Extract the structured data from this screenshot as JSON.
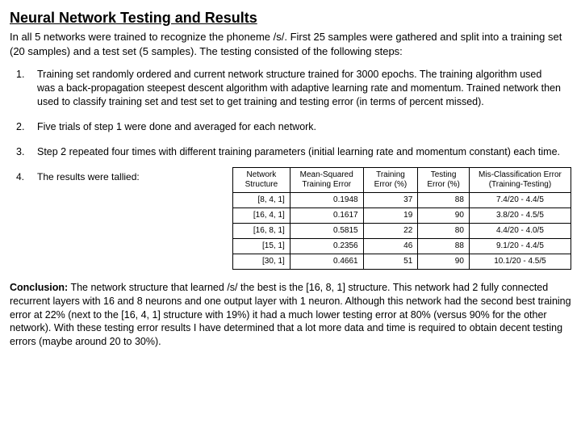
{
  "title": "Neural Network Testing and Results",
  "intro": "In all 5 networks were trained to recognize the phoneme /s/.  First 25 samples were gathered and split into a training set (20 samples) and a test set (5 samples).  The testing consisted of the following steps:",
  "steps": {
    "s1": {
      "num": "1.",
      "text": "Training set randomly ordered and current network structure trained for 3000 epochs. The training algorithm used was a back-propagation steepest descent algorithm with adaptive learning rate and momentum.  Trained network then used to classify training set and test set to get training and testing error (in terms of percent missed)."
    },
    "s2": {
      "num": "2.",
      "text": "Five trials of step 1 were done and averaged for each network."
    },
    "s3": {
      "num": "3.",
      "text": "Step 2 repeated four times with different training parameters (initial learning rate and momentum constant) each time."
    },
    "s4": {
      "num": "4.",
      "text": "The results were tallied:"
    }
  },
  "table": {
    "headers": {
      "c1": "Network\nStructure",
      "c2": "Mean-Squared\nTraining Error",
      "c3": "Training\nError (%)",
      "c4": "Testing\nError (%)",
      "c5": "Mis-Classification\nError\n(Training-Testing)"
    },
    "rows": {
      "r1": {
        "c1": "[8, 4, 1]",
        "c2": "0.1948",
        "c3": "37",
        "c4": "88",
        "c5": "7.4/20 - 4.4/5"
      },
      "r2": {
        "c1": "[16, 4, 1]",
        "c2": "0.1617",
        "c3": "19",
        "c4": "90",
        "c5": "3.8/20 - 4.5/5"
      },
      "r3": {
        "c1": "[16, 8, 1]",
        "c2": "0.5815",
        "c3": "22",
        "c4": "80",
        "c5": "4.4/20 - 4.0/5"
      },
      "r4": {
        "c1": "[15, 1]",
        "c2": "0.2356",
        "c3": "46",
        "c4": "88",
        "c5": "9.1/20 - 4.4/5"
      },
      "r5": {
        "c1": "[30, 1]",
        "c2": "0.4661",
        "c3": "51",
        "c4": "90",
        "c5": "10.1/20 - 4.5/5"
      }
    }
  },
  "conclusion": {
    "label": "Conclusion:",
    "text": " The network structure that learned /s/ the best is the [16, 8, 1] structure.  This network had 2 fully connected recurrent layers with 16 and 8 neurons and one output layer with 1 neuron.  Although this network had the second best training error at 22% (next to the [16, 4, 1] structure with 19%) it had a much lower testing error at 80% (versus 90% for the other network).  With these testing error results I have determined that a lot more data and time is required to obtain decent testing errors (maybe around 20 to 30%)."
  }
}
